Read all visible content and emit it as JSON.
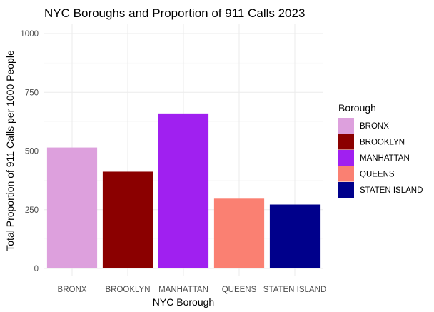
{
  "chart_data": {
    "type": "bar",
    "title": "NYC Boroughs and Proportion of 911 Calls 2023",
    "xlabel": "NYC Borough",
    "ylabel": "Total Proportion of 911 Calls per 1000 People",
    "categories": [
      "BRONX",
      "BROOKLYN",
      "MANHATTAN",
      "QUEENS",
      "STATEN ISLAND"
    ],
    "values": [
      515,
      412,
      660,
      297,
      272
    ],
    "colors": [
      "#DDA0DD",
      "#8B0000",
      "#A020F0",
      "#FA8072",
      "#00008B"
    ],
    "ylim": [
      0,
      1000
    ],
    "yticks": [
      0,
      250,
      500,
      750,
      1000
    ],
    "grid": true,
    "legend": {
      "title": "Borough",
      "position": "right",
      "entries": [
        "BRONX",
        "BROOKLYN",
        "MANHATTAN",
        "QUEENS",
        "STATEN ISLAND"
      ]
    }
  }
}
